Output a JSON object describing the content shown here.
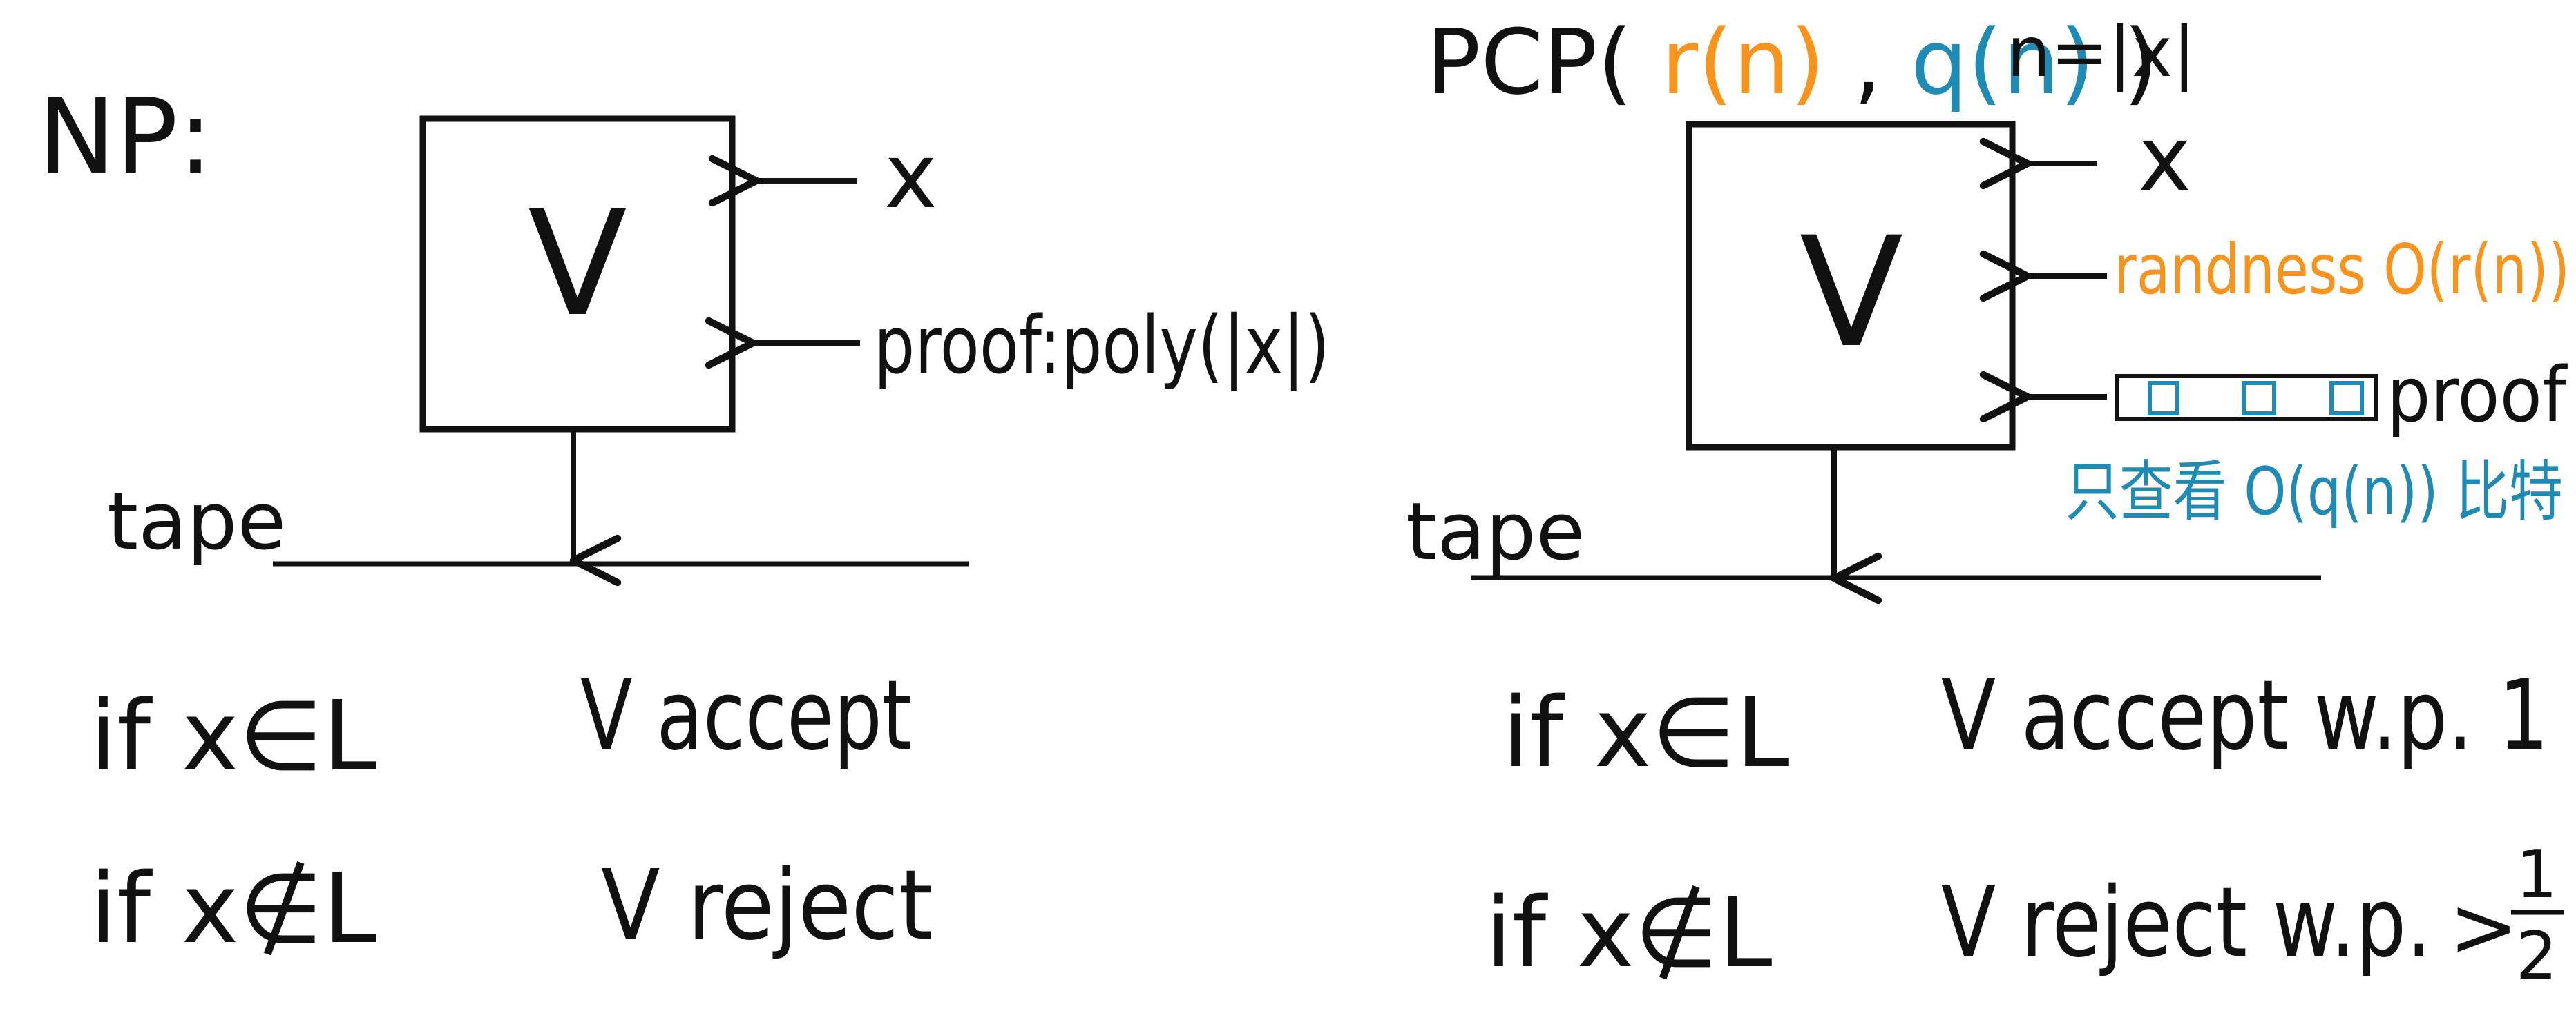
{
  "colors": {
    "ink": "#111111",
    "orange": "#F7941D",
    "blue": "#1F8BB5"
  },
  "np": {
    "title": "NP:",
    "verifier": "V",
    "input": "x",
    "proof": "proof:poly(|x|)",
    "tape": "tape",
    "accept_if": "if x∈L",
    "accept_result": "V accept",
    "reject_if": "if x∉L",
    "reject_result": "V reject"
  },
  "pcp": {
    "title_prefix": "PCP(",
    "r": "r(n)",
    "comma": ",",
    "q": "q(n)",
    "title_suffix": ")",
    "n_def": "n=|x|",
    "verifier": "V",
    "input": "x",
    "randomness": "randness O(r(n))",
    "proof": "proof",
    "query_note": "只查看 O(q(n)) 比特",
    "tape": "tape",
    "accept_if": "if x∈L",
    "accept_result": "V accept w.p. 1",
    "reject_if": "if x∉L",
    "reject_result": "V reject w.p.",
    "reject_bound_rel": ">",
    "reject_bound_num": "1",
    "reject_bound_den": "2"
  }
}
